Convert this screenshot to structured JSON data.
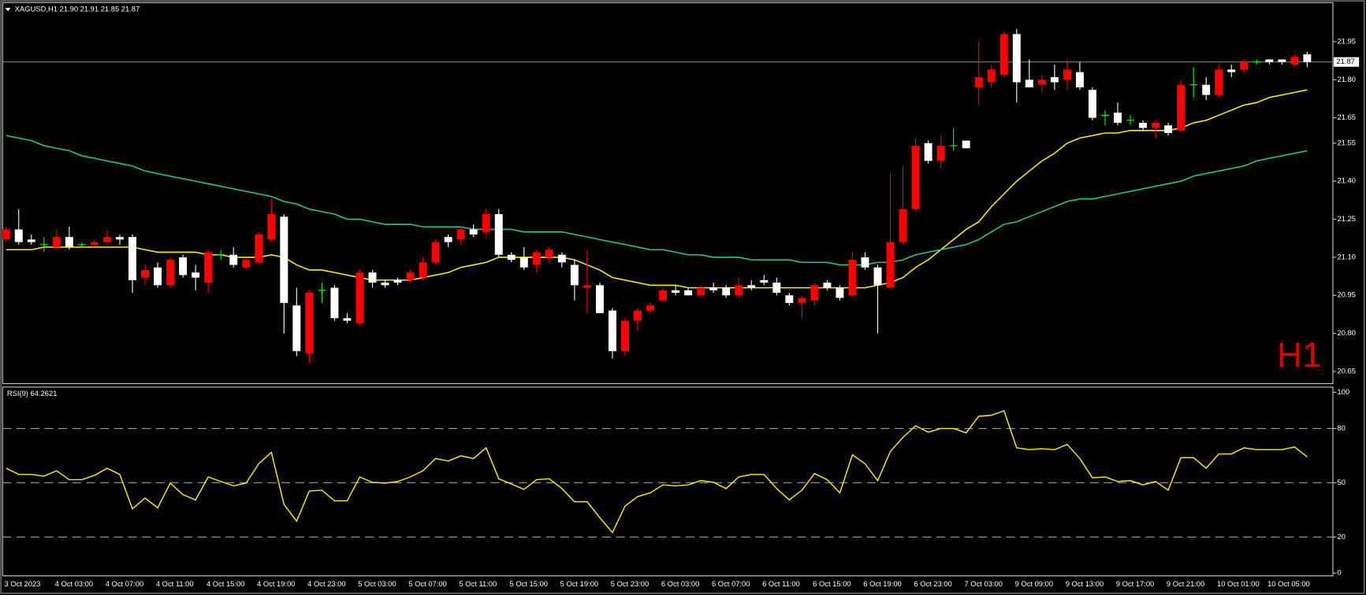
{
  "chart_data": [
    {
      "type": "candlestick",
      "title": "XAGUSD,H1  21.90 21.91 21.85 21.87",
      "annotation": "H1",
      "categories": [
        "3 Oct 2023",
        null,
        null,
        null,
        "4 Oct 03:00",
        null,
        null,
        null,
        "4 Oct 07:00",
        null,
        null,
        null,
        "4 Oct 11:00",
        null,
        null,
        null,
        "4 Oct 15:00",
        null,
        null,
        null,
        "4 Oct 19:00",
        null,
        null,
        null,
        "4 Oct 23:00",
        null,
        null,
        null,
        "5 Oct 03:00",
        null,
        null,
        null,
        "5 Oct 07:00",
        null,
        null,
        null,
        "5 Oct 11:00",
        null,
        null,
        null,
        "5 Oct 15:00",
        null,
        null,
        null,
        "5 Oct 19:00",
        null,
        null,
        null,
        "5 Oct 23:00",
        null,
        null,
        null,
        "6 Oct 03:00",
        null,
        null,
        null,
        "6 Oct 07:00",
        null,
        null,
        null,
        "6 Oct 11:00",
        null,
        null,
        null,
        "6 Oct 15:00",
        null,
        null,
        null,
        "6 Oct 19:00",
        null,
        null,
        null,
        "6 Oct 23:00",
        null,
        null,
        null,
        "7 Oct 03:00",
        null,
        null,
        null,
        "9 Oct 09:00",
        null,
        null,
        null,
        "9 Oct 13:00",
        null,
        null,
        null,
        "9 Oct 17:00",
        null,
        null,
        null,
        "9 Oct 21:00",
        null,
        null,
        null,
        "10 Oct 01:00",
        null,
        null,
        null,
        "10 Oct 05:00",
        null,
        null,
        null
      ],
      "open": [
        21.17,
        21.21,
        21.17,
        21.15,
        21.14,
        21.18,
        21.15,
        21.15,
        21.16,
        21.18,
        21.18,
        21.02,
        21.06,
        20.99,
        21.1,
        21.04,
        21.0,
        21.11,
        21.11,
        21.06,
        21.08,
        21.17,
        21.26,
        20.91,
        20.72,
        20.97,
        20.98,
        20.86,
        20.84,
        21.04,
        21.0,
        21.01,
        21.01,
        21.02,
        21.08,
        21.18,
        21.17,
        21.21,
        21.2,
        21.27,
        21.11,
        21.1,
        21.07,
        21.1,
        21.11,
        21.07,
        20.98,
        20.99,
        20.89,
        20.73,
        20.85,
        20.89,
        20.93,
        20.97,
        20.97,
        20.95,
        20.98,
        20.98,
        20.95,
        20.99,
        21.01,
        21.0,
        20.95,
        20.92,
        20.93,
        21.0,
        20.98,
        20.95,
        21.1,
        21.06,
        20.98,
        21.16,
        21.29,
        21.55,
        21.48,
        21.54,
        21.56,
        21.77,
        21.79,
        21.82,
        21.98,
        21.8,
        21.78,
        21.81,
        21.8,
        21.83,
        21.76,
        21.66,
        21.67,
        21.64,
        21.63,
        21.61,
        21.62,
        21.6,
        21.78,
        21.78,
        21.74,
        21.84,
        21.84,
        21.87,
        21.88,
        21.88,
        21.86,
        21.9
      ],
      "high": [
        21.22,
        21.29,
        21.19,
        21.18,
        21.21,
        21.22,
        21.16,
        21.17,
        21.21,
        21.19,
        21.19,
        21.07,
        21.08,
        21.1,
        21.11,
        21.07,
        21.13,
        21.13,
        21.14,
        21.1,
        21.2,
        21.33,
        21.27,
        20.98,
        20.97,
        21.0,
        20.99,
        20.88,
        21.05,
        21.05,
        21.01,
        21.02,
        21.05,
        21.1,
        21.17,
        21.19,
        21.22,
        21.23,
        21.29,
        21.29,
        21.12,
        21.14,
        21.13,
        21.14,
        21.12,
        21.09,
        21.13,
        21.0,
        20.9,
        20.86,
        20.9,
        20.92,
        20.98,
        20.99,
        20.98,
        20.99,
        21.0,
        20.99,
        21.02,
        21.01,
        21.03,
        21.02,
        20.96,
        20.95,
        21.0,
        21.01,
        20.99,
        21.12,
        21.12,
        21.07,
        21.43,
        21.46,
        21.57,
        21.56,
        21.58,
        21.61,
        21.56,
        21.95,
        21.86,
        21.99,
        22.0,
        21.88,
        21.82,
        21.86,
        21.88,
        21.87,
        21.77,
        21.68,
        21.71,
        21.66,
        21.64,
        21.64,
        21.63,
        21.8,
        21.85,
        21.81,
        21.86,
        21.86,
        21.88,
        21.88,
        21.88,
        21.88,
        21.9,
        21.91
      ],
      "low": [
        21.16,
        21.15,
        21.15,
        21.12,
        21.13,
        21.13,
        21.14,
        21.14,
        21.15,
        21.15,
        20.96,
        20.99,
        20.98,
        20.98,
        21.02,
        20.97,
        20.96,
        21.09,
        21.06,
        21.05,
        21.07,
        21.16,
        20.8,
        20.71,
        20.68,
        20.92,
        20.85,
        20.84,
        20.83,
        20.98,
        20.98,
        20.99,
        21.0,
        21.01,
        21.07,
        21.14,
        21.15,
        21.18,
        21.19,
        21.1,
        21.08,
        21.05,
        21.04,
        21.08,
        21.06,
        20.93,
        20.88,
        20.88,
        20.7,
        20.71,
        20.81,
        20.88,
        20.92,
        20.95,
        20.95,
        20.94,
        20.96,
        20.94,
        20.94,
        20.97,
        20.99,
        20.95,
        20.91,
        20.86,
        20.91,
        20.97,
        20.93,
        20.94,
        21.05,
        20.8,
        20.97,
        21.15,
        21.28,
        21.47,
        21.45,
        21.52,
        21.53,
        21.7,
        21.77,
        21.81,
        21.71,
        21.77,
        21.75,
        21.76,
        21.76,
        21.76,
        21.64,
        21.62,
        21.62,
        21.62,
        21.6,
        21.57,
        21.58,
        21.59,
        21.73,
        21.72,
        21.73,
        21.81,
        21.83,
        21.86,
        21.86,
        21.86,
        21.85,
        21.85
      ],
      "close": [
        21.21,
        21.16,
        21.16,
        21.15,
        21.18,
        21.14,
        21.15,
        21.16,
        21.18,
        21.17,
        21.01,
        21.05,
        20.99,
        21.09,
        21.03,
        21.02,
        21.12,
        21.11,
        21.07,
        21.09,
        21.19,
        21.27,
        20.92,
        20.73,
        20.96,
        20.97,
        20.86,
        20.85,
        21.04,
        21.0,
        20.99,
        21.0,
        21.04,
        21.08,
        21.16,
        21.16,
        21.21,
        21.19,
        21.27,
        21.11,
        21.09,
        21.06,
        21.12,
        21.13,
        21.08,
        20.99,
        20.99,
        20.88,
        20.73,
        20.85,
        20.89,
        20.91,
        20.97,
        20.96,
        20.95,
        20.98,
        20.97,
        20.95,
        20.99,
        20.98,
        21.0,
        20.96,
        20.92,
        20.94,
        20.99,
        20.98,
        20.94,
        21.09,
        21.06,
        20.99,
        21.16,
        21.29,
        21.54,
        21.48,
        21.54,
        21.54,
        21.53,
        21.81,
        21.84,
        21.98,
        21.79,
        21.77,
        21.8,
        21.79,
        21.84,
        21.77,
        21.65,
        21.66,
        21.63,
        21.64,
        21.61,
        21.63,
        21.59,
        21.78,
        21.78,
        21.74,
        21.84,
        21.83,
        21.87,
        21.87,
        21.87,
        21.87,
        21.89,
        21.87
      ],
      "up_color": "#ff0000",
      "down_color": "#ffffff",
      "doji_color": "#00ff00",
      "lines": [
        {
          "color": "#ffee00",
          "values": [
            21.13,
            21.13,
            21.13,
            21.14,
            21.14,
            21.14,
            21.14,
            21.14,
            21.14,
            21.14,
            21.14,
            21.13,
            21.12,
            21.12,
            21.12,
            21.12,
            21.11,
            21.11,
            21.1,
            21.1,
            21.1,
            21.11,
            21.1,
            21.07,
            21.05,
            21.05,
            21.04,
            21.03,
            21.02,
            21.01,
            21.01,
            21.01,
            21.01,
            21.02,
            21.03,
            21.04,
            21.06,
            21.07,
            21.08,
            21.1,
            21.1,
            21.1,
            21.1,
            21.1,
            21.1,
            21.09,
            21.07,
            21.05,
            21.02,
            21.01,
            21.0,
            20.99,
            20.99,
            20.99,
            20.98,
            20.98,
            20.98,
            20.98,
            20.98,
            20.98,
            20.98,
            20.98,
            20.98,
            20.98,
            20.98,
            20.98,
            20.98,
            20.98,
            20.98,
            20.99,
            21.0,
            21.02,
            21.06,
            21.09,
            21.13,
            21.17,
            21.21,
            21.24,
            21.3,
            21.35,
            21.4,
            21.44,
            21.48,
            21.51,
            21.55,
            21.57,
            21.58,
            21.59,
            21.59,
            21.6,
            21.6,
            21.6,
            21.6,
            21.61,
            21.63,
            21.64,
            21.66,
            21.68,
            21.7,
            21.71,
            21.73,
            21.74,
            21.75,
            21.76
          ]
        },
        {
          "color": "#22c8a4",
          "values": [
            21.58,
            21.57,
            21.56,
            21.54,
            21.53,
            21.52,
            21.5,
            21.49,
            21.48,
            21.47,
            21.46,
            21.44,
            21.43,
            21.42,
            21.41,
            21.4,
            21.39,
            21.38,
            21.37,
            21.36,
            21.35,
            21.34,
            21.32,
            21.31,
            21.29,
            21.28,
            21.27,
            21.25,
            21.25,
            21.24,
            21.23,
            21.23,
            21.23,
            21.22,
            21.22,
            21.22,
            21.22,
            21.21,
            21.21,
            21.21,
            21.21,
            21.2,
            21.2,
            21.2,
            21.2,
            21.19,
            21.18,
            21.17,
            21.16,
            21.15,
            21.14,
            21.13,
            21.13,
            21.12,
            21.11,
            21.11,
            21.1,
            21.1,
            21.1,
            21.09,
            21.09,
            21.09,
            21.09,
            21.08,
            21.08,
            21.08,
            21.07,
            21.07,
            21.07,
            21.08,
            21.08,
            21.09,
            21.11,
            21.12,
            21.13,
            21.14,
            21.15,
            21.17,
            21.2,
            21.23,
            21.24,
            21.26,
            21.28,
            21.3,
            21.32,
            21.33,
            21.33,
            21.34,
            21.35,
            21.36,
            21.37,
            21.38,
            21.39,
            21.4,
            21.42,
            21.43,
            21.44,
            21.45,
            21.46,
            21.48,
            21.49,
            21.5,
            21.51,
            21.52
          ]
        }
      ],
      "last_price": 21.87,
      "ylim": [
        20.602,
        22.104
      ],
      "yticks": [
        21.95,
        {
          "value": 21.8,
          "label": "21.80"
        },
        21.65,
        21.55,
        {
          "value": 21.4,
          "label": "21.40"
        },
        21.25,
        {
          "value": 21.1,
          "label": "21.10"
        },
        20.95,
        {
          "value": 20.8,
          "label": "20.80"
        },
        20.65
      ]
    },
    {
      "type": "line",
      "title": "RSI(9) 64.2621",
      "values": [
        58.0,
        54.6,
        54.6,
        53.7,
        56.6,
        51.7,
        51.7,
        54.1,
        58.0,
        54.6,
        35.6,
        41.5,
        36.1,
        49.8,
        43.4,
        40.5,
        53.2,
        50.7,
        48.3,
        49.8,
        60.5,
        66.8,
        38.0,
        28.8,
        45.4,
        45.9,
        40.0,
        40.0,
        53.2,
        50.2,
        49.8,
        50.7,
        53.2,
        56.6,
        63.4,
        62.0,
        64.9,
        63.4,
        69.3,
        52.2,
        49.3,
        46.3,
        51.7,
        52.2,
        46.8,
        39.5,
        39.5,
        30.7,
        22.4,
        37.1,
        42.4,
        44.4,
        48.8,
        48.3,
        48.8,
        51.2,
        50.2,
        46.8,
        53.2,
        54.6,
        54.6,
        46.8,
        40.5,
        45.9,
        55.1,
        51.7,
        44.4,
        65.4,
        60.5,
        51.2,
        67.3,
        75.1,
        81.5,
        78.0,
        80.0,
        80.0,
        77.6,
        86.8,
        87.3,
        89.8,
        69.3,
        68.3,
        68.8,
        68.3,
        71.2,
        63.4,
        52.7,
        53.2,
        50.7,
        51.2,
        48.8,
        50.7,
        45.9,
        63.9,
        63.9,
        58.0,
        65.9,
        65.9,
        69.3,
        68.3,
        68.3,
        68.3,
        69.8,
        64.26
      ],
      "color": "#ffee00",
      "ylim": [
        -1.5,
        102.9
      ],
      "yticks": [
        100,
        80,
        50,
        20,
        0
      ],
      "levels": [
        80,
        50,
        20
      ]
    }
  ]
}
